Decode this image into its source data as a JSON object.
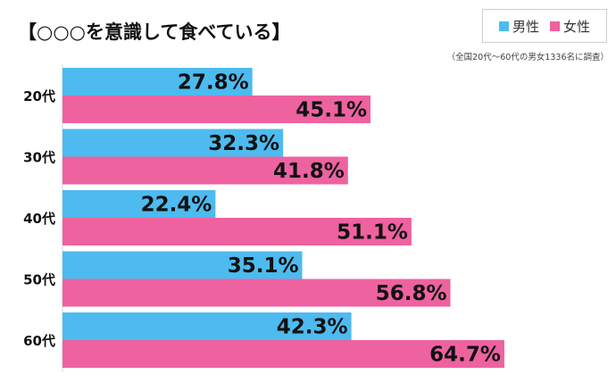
{
  "chart_data": {
    "type": "bar",
    "orientation": "horizontal",
    "title": "【○○○を意識して食べている】",
    "note": "（全国20代～60代の男女1336名に調査）",
    "categories": [
      "20代",
      "30代",
      "40代",
      "50代",
      "60代"
    ],
    "series": [
      {
        "name": "男性",
        "color": "#4dbbef",
        "values": [
          27.8,
          32.3,
          22.4,
          35.1,
          42.3
        ],
        "labels": [
          "27.8%",
          "32.3%",
          "22.4%",
          "35.1%",
          "42.3%"
        ]
      },
      {
        "name": "女性",
        "color": "#ee62a0",
        "values": [
          45.1,
          41.8,
          51.1,
          56.8,
          64.7
        ],
        "labels": [
          "45.1%",
          "41.8%",
          "51.1%",
          "56.8%",
          "64.7%"
        ]
      }
    ],
    "xlim": [
      0,
      70
    ],
    "grid": false,
    "legend_position": "top-right"
  }
}
